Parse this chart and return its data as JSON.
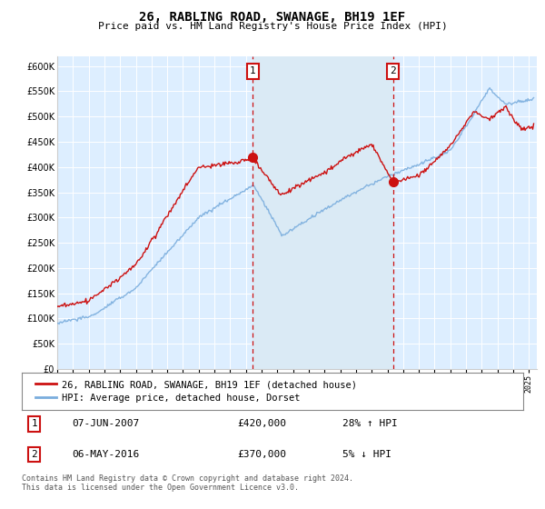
{
  "title": "26, RABLING ROAD, SWANAGE, BH19 1EF",
  "subtitle": "Price paid vs. HM Land Registry's House Price Index (HPI)",
  "red_label": "26, RABLING ROAD, SWANAGE, BH19 1EF (detached house)",
  "blue_label": "HPI: Average price, detached house, Dorset",
  "annotation1_date": "07-JUN-2007",
  "annotation1_price": "£420,000",
  "annotation1_hpi": "28% ↑ HPI",
  "annotation2_date": "06-MAY-2016",
  "annotation2_price": "£370,000",
  "annotation2_hpi": "5% ↓ HPI",
  "footnote": "Contains HM Land Registry data © Crown copyright and database right 2024.\nThis data is licensed under the Open Government Licence v3.0.",
  "marker1_x": 2007.44,
  "marker2_x": 2016.35,
  "marker1_y_red": 420000,
  "marker2_y_red": 370000,
  "ylim_min": 0,
  "ylim_max": 620000,
  "xlim_min": 1995,
  "xlim_max": 2025.5,
  "red_color": "#cc1111",
  "blue_color": "#7aaddd",
  "shade_color": "#daeaf5",
  "background_color": "#ddeeff",
  "plot_bg_color": "#ddeeff"
}
